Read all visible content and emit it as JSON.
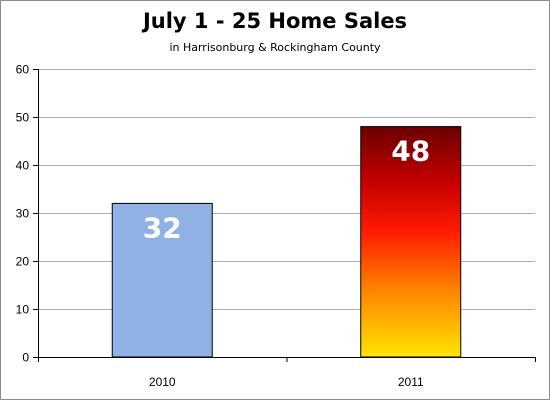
{
  "chart_data": {
    "type": "bar",
    "title": "July 1 - 25 Home Sales",
    "subtitle": "in Harrisonburg & Rockingham County",
    "xlabel": "",
    "ylabel": "",
    "categories": [
      "2010",
      "2011"
    ],
    "values": [
      32,
      48
    ],
    "data_labels": [
      "32",
      "48"
    ],
    "ylim": [
      0,
      60
    ],
    "yticks": [
      0,
      10,
      20,
      30,
      40,
      50,
      60
    ],
    "grid": true,
    "legend": "none",
    "colors": {
      "bar_2010": "#8fb1e3",
      "bar_2011_gradient": [
        "#6b0000",
        "#c80000",
        "#ff1a00",
        "#ff8000",
        "#ffe600"
      ],
      "gridline": "#b0b0b0",
      "axis": "#000000",
      "border": "#8c8c8c"
    }
  }
}
